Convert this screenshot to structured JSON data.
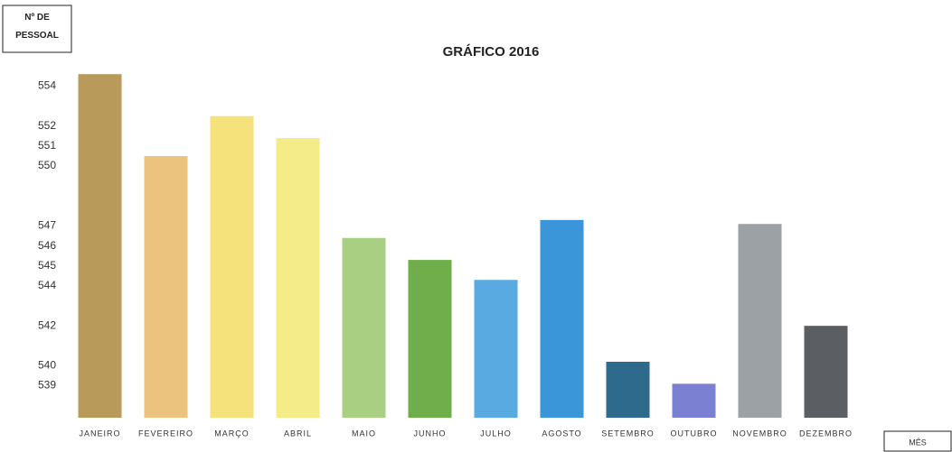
{
  "chart_data": {
    "type": "bar",
    "title": "GRÁFICO 2016",
    "y_label": "Nº DE PESSOAL",
    "x_label": "MÊS",
    "categories": [
      "JANEIRO",
      "FEVEREIRO",
      "MARÇO",
      "ABRIL",
      "MAIO",
      "JUNHO",
      "JULHO",
      "AGOSTO",
      "SETEMBRO",
      "OUTUBRO",
      "NOVEMBRO",
      "DEZEMBRO"
    ],
    "values": [
      554.6,
      550.5,
      552.5,
      551.4,
      546.4,
      545.3,
      544.3,
      547.3,
      540.2,
      539.1,
      547.1,
      542.0
    ],
    "colors": [
      "#b89a5a",
      "#ebc27e",
      "#f6e27a",
      "#f4ec88",
      "#a9cf82",
      "#6fae4b",
      "#5aaae2",
      "#3a96d8",
      "#2e6a8c",
      "#7c80d2",
      "#9ba1a5",
      "#5b5f63"
    ],
    "ylim": [
      537.4,
      554.7
    ],
    "yticks": [
      554,
      552,
      551,
      550,
      547,
      546,
      545,
      544,
      542,
      540,
      539
    ],
    "grid": false
  }
}
